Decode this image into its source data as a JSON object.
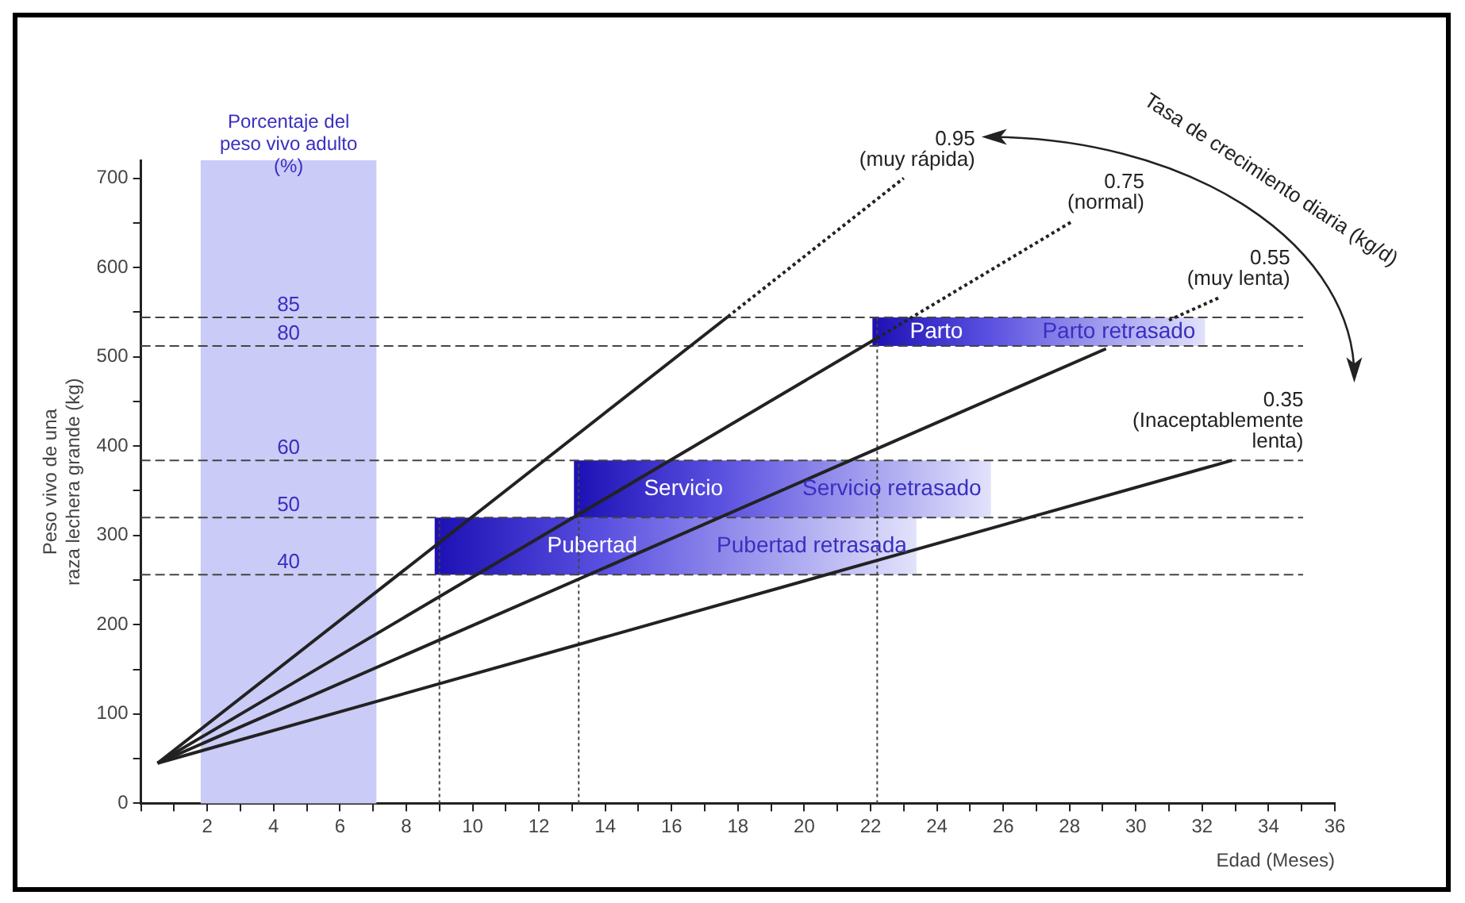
{
  "chart_data": {
    "type": "line",
    "xlabel": "Edad (Meses)",
    "ylabel": "Peso vivo de una raza lechera grande (kg)",
    "legend_title": "Tasa de crecimiento diaria (kg/d)",
    "xlim": [
      0,
      36
    ],
    "ylim": [
      0,
      720
    ],
    "xticks": [
      {
        "value": 0,
        "label": null
      },
      {
        "value": 1,
        "label": null
      },
      2,
      {
        "value": 3,
        "label": null
      },
      4,
      {
        "value": 5,
        "label": null
      },
      6,
      {
        "value": 7,
        "label": null
      },
      8,
      {
        "value": 9,
        "label": null
      },
      10,
      {
        "value": 11,
        "label": null
      },
      12,
      {
        "value": 13,
        "label": null
      },
      14,
      {
        "value": 15,
        "label": null
      },
      16,
      {
        "value": 17,
        "label": null
      },
      18,
      {
        "value": 19,
        "label": null
      },
      20,
      {
        "value": 21,
        "label": null
      },
      22,
      {
        "value": 23,
        "label": null
      },
      24,
      {
        "value": 25,
        "label": null
      },
      26,
      {
        "value": 27,
        "label": null
      },
      28,
      {
        "value": 29,
        "label": null
      },
      30,
      {
        "value": 31,
        "label": null
      },
      32,
      {
        "value": 33,
        "label": null
      },
      34,
      {
        "value": 35,
        "label": null
      },
      36
    ],
    "yticks": [
      0,
      {
        "value": 50,
        "label": null
      },
      100,
      {
        "value": 150,
        "label": null
      },
      200,
      {
        "value": 250,
        "label": null
      },
      300,
      {
        "value": 350,
        "label": null
      },
      400,
      {
        "value": 450,
        "label": null
      },
      500,
      {
        "value": 550,
        "label": null
      },
      600,
      {
        "value": 650,
        "label": null
      },
      700
    ],
    "series": [
      {
        "color": "#222222",
        "line_style": "solid",
        "x": [
          0.5,
          17.7
        ],
        "values": [
          45,
          545
        ]
      },
      {
        "name": "0.95 (muy rápida)",
        "color": "#222222",
        "line_style": "dotted",
        "x": [
          17.7,
          23.0
        ],
        "values": [
          545,
          700
        ]
      },
      {
        "color": "#222222",
        "line_style": "solid",
        "x": [
          0.5,
          22.2
        ],
        "values": [
          45,
          521
        ]
      },
      {
        "name": "0.75 (normal)",
        "color": "#222222",
        "line_style": "dotted",
        "x": [
          22.2,
          28.1
        ],
        "values": [
          521,
          652
        ]
      },
      {
        "color": "#222222",
        "line_style": "solid",
        "x": [
          0.5,
          29.1
        ],
        "values": [
          45,
          509
        ]
      },
      {
        "name": "0.55 (muy lenta)",
        "color": "#222222",
        "line_style": "dotted",
        "x": [
          31.0,
          32.5
        ],
        "values": [
          541,
          566
        ]
      },
      {
        "name": "0.35 (Inaceptablemente lenta)",
        "color": "#222222",
        "line_style": "solid",
        "x": [
          0.5,
          32.9
        ],
        "values": [
          45,
          384
        ]
      }
    ],
    "ref_lines": [
      {
        "axis": "y",
        "value": 256,
        "color": "#444444",
        "line_style": "dashed"
      },
      {
        "axis": "y",
        "value": 320,
        "color": "#444444",
        "line_style": "dashed"
      },
      {
        "axis": "y",
        "value": 384,
        "color": "#444444",
        "line_style": "dashed"
      },
      {
        "axis": "y",
        "value": 512,
        "color": "#444444",
        "line_style": "dashed"
      },
      {
        "axis": "y",
        "value": 544,
        "color": "#444444",
        "line_style": "dashed"
      },
      {
        "axis": "x",
        "value": 9.0,
        "color": "#444444",
        "line_style": "dotted"
      },
      {
        "axis": "x",
        "value": 13.2,
        "color": "#444444",
        "line_style": "dotted"
      },
      {
        "axis": "x",
        "value": 22.2,
        "color": "#444444",
        "line_style": "dotted"
      }
    ],
    "bands": [
      {
        "axis": "x",
        "from": 1.8,
        "to": 7.1,
        "label": "Porcentaje del peso vivo adulto (%)",
        "color": "#cbcbf7"
      },
      {
        "axis": "y",
        "from": 256,
        "to": 320,
        "label": "Pubertad",
        "color": "#1c10b4"
      },
      {
        "axis": "y",
        "from": 320,
        "to": 384,
        "label": "Servicio",
        "color": "#1c10b4"
      },
      {
        "axis": "y",
        "from": 512,
        "to": 544,
        "label": "Parto",
        "color": "#1c10b4"
      }
    ],
    "annotations": [
      "40",
      "50",
      "60",
      "80",
      "85",
      "Pubertad retrasada",
      "Servicio retrasado",
      "Parto retrasado"
    ]
  }
}
